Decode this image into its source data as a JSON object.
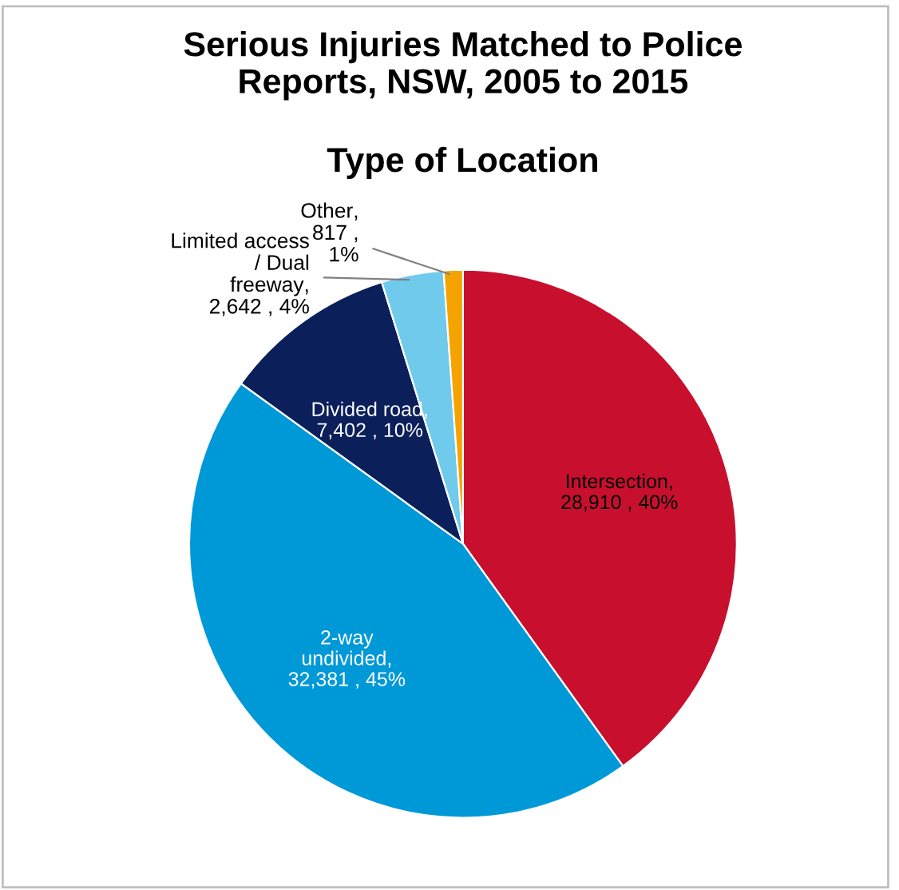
{
  "chart_data": {
    "type": "pie",
    "title": "Serious Injuries Matched to Police\nReports, NSW, 2005 to 2015",
    "subtitle": "Type of Location",
    "categories": [
      "Intersection",
      "2-way\nundivided",
      "Divided road",
      "Limited access\n/ Dual\nfreeway",
      "Other"
    ],
    "values": [
      28910,
      32381,
      7402,
      2642,
      817
    ],
    "value_labels": [
      ",\n28,910 , 40%",
      ",\n32,381 , 45%",
      ",\n7,402 , 10%",
      ",\n2,642 , 4%",
      ",\n817 ,\n1%"
    ],
    "colors": [
      "#c8102e",
      "#0099d8",
      "#0b1f5a",
      "#6fcaec",
      "#f5a300"
    ],
    "legend": false
  }
}
